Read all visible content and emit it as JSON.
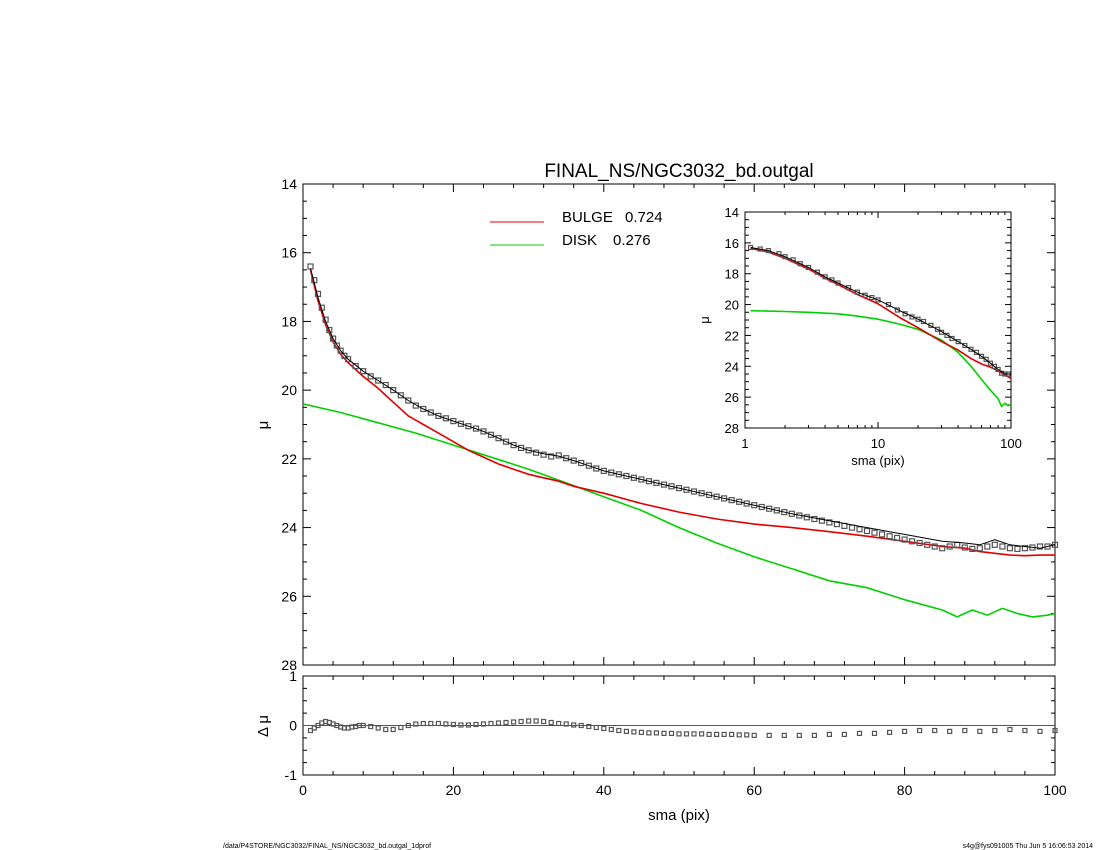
{
  "chart_data": [
    {
      "id": "main",
      "type": "line",
      "title": "FINAL_NS/NGC3032_bd.outgal",
      "xlabel": "sma (pix)",
      "ylabel": "μ",
      "xlim": [
        0,
        100
      ],
      "ylim": [
        28,
        14
      ],
      "x_ticks": [
        "0",
        "20",
        "40",
        "60",
        "80",
        "100"
      ],
      "y_ticks": [
        "14",
        "16",
        "18",
        "20",
        "22",
        "24",
        "26",
        "28"
      ],
      "legend": [
        {
          "label": "BULGE",
          "value": "0.724",
          "color": "#e00000"
        },
        {
          "label": "DISK",
          "value": "0.276",
          "color": "#00d000"
        }
      ],
      "series": [
        {
          "key": "data",
          "style": "squares",
          "color": "#555555",
          "x": [
            1,
            1.5,
            2,
            2.5,
            3,
            3.5,
            4,
            4.5,
            5,
            5.5,
            6,
            7,
            8,
            9,
            10,
            11,
            12,
            13,
            14,
            15,
            16,
            17,
            18,
            19,
            20,
            21,
            22,
            23,
            24,
            25,
            26,
            27,
            28,
            29,
            30,
            31,
            32,
            33,
            34,
            35,
            36,
            37,
            38,
            39,
            40,
            41,
            42,
            43,
            44,
            45,
            46,
            47,
            48,
            49,
            50,
            51,
            52,
            53,
            54,
            55,
            56,
            57,
            58,
            59,
            60,
            61,
            62,
            63,
            64,
            65,
            66,
            67,
            68,
            69,
            70,
            71,
            72,
            73,
            74,
            75,
            76,
            77,
            78,
            79,
            80,
            81,
            82,
            83,
            84,
            85,
            86,
            87,
            88,
            89,
            90,
            91,
            92,
            93,
            94,
            95,
            96,
            97,
            98,
            99,
            100
          ],
          "y": [
            16.4,
            16.8,
            17.2,
            17.6,
            17.95,
            18.25,
            18.5,
            18.7,
            18.85,
            19.0,
            19.1,
            19.3,
            19.45,
            19.6,
            19.72,
            19.85,
            20.0,
            20.15,
            20.3,
            20.45,
            20.55,
            20.65,
            20.75,
            20.82,
            20.9,
            20.98,
            21.05,
            21.12,
            21.2,
            21.3,
            21.4,
            21.5,
            21.6,
            21.68,
            21.75,
            21.82,
            21.88,
            21.93,
            21.9,
            21.98,
            22.05,
            22.12,
            22.2,
            22.28,
            22.35,
            22.4,
            22.45,
            22.5,
            22.55,
            22.6,
            22.65,
            22.7,
            22.75,
            22.8,
            22.85,
            22.9,
            22.95,
            23.0,
            23.05,
            23.1,
            23.15,
            23.2,
            23.25,
            23.3,
            23.35,
            23.4,
            23.45,
            23.5,
            23.55,
            23.6,
            23.65,
            23.7,
            23.75,
            23.8,
            23.85,
            23.9,
            23.95,
            24.0,
            24.05,
            24.1,
            24.15,
            24.2,
            24.25,
            24.3,
            24.35,
            24.4,
            24.45,
            24.5,
            24.55,
            24.6,
            24.55,
            24.5,
            24.58,
            24.62,
            24.6,
            24.55,
            24.5,
            24.55,
            24.6,
            24.62,
            24.6,
            24.58,
            24.55,
            24.55,
            24.5
          ]
        },
        {
          "key": "model",
          "style": "line",
          "color": "#000000",
          "x": [
            1,
            2,
            3,
            4,
            5,
            6,
            8,
            10,
            12,
            14,
            16,
            18,
            20,
            22,
            24,
            26,
            28,
            30,
            32,
            34,
            36,
            38,
            40,
            45,
            50,
            55,
            60,
            65,
            70,
            75,
            80,
            85,
            88,
            90,
            92,
            94,
            96,
            98,
            100
          ],
          "y": [
            16.45,
            17.3,
            18.0,
            18.5,
            18.85,
            19.1,
            19.45,
            19.72,
            20.0,
            20.3,
            20.55,
            20.75,
            20.9,
            21.05,
            21.2,
            21.4,
            21.6,
            21.75,
            21.85,
            21.92,
            22.05,
            22.2,
            22.35,
            22.6,
            22.85,
            23.1,
            23.35,
            23.6,
            23.8,
            24.0,
            24.2,
            24.4,
            24.45,
            24.5,
            24.35,
            24.5,
            24.55,
            24.6,
            24.5
          ]
        },
        {
          "key": "bulge",
          "style": "line",
          "color": "#e00000",
          "x": [
            1,
            2,
            3,
            4,
            5,
            6,
            7,
            8,
            10,
            12,
            14,
            16,
            18,
            20,
            22,
            24,
            26,
            28,
            30,
            32,
            34,
            36,
            38,
            40,
            45,
            50,
            55,
            60,
            65,
            70,
            75,
            80,
            85,
            88,
            90,
            92,
            94,
            96,
            98,
            100
          ],
          "y": [
            16.5,
            17.4,
            18.1,
            18.6,
            18.95,
            19.2,
            19.4,
            19.6,
            19.95,
            20.35,
            20.75,
            21.0,
            21.25,
            21.5,
            21.75,
            21.95,
            22.15,
            22.3,
            22.45,
            22.55,
            22.65,
            22.8,
            22.9,
            23.0,
            23.3,
            23.55,
            23.75,
            23.9,
            24.0,
            24.12,
            24.25,
            24.4,
            24.55,
            24.6,
            24.7,
            24.75,
            24.8,
            24.82,
            24.8,
            24.8
          ]
        },
        {
          "key": "disk",
          "style": "line",
          "color": "#00d000",
          "x": [
            0,
            5,
            10,
            15,
            20,
            25,
            30,
            35,
            40,
            45,
            50,
            55,
            60,
            65,
            70,
            75,
            80,
            85,
            87,
            89,
            91,
            93,
            95,
            97,
            99,
            100
          ],
          "y": [
            20.4,
            20.65,
            20.95,
            21.25,
            21.6,
            21.95,
            22.3,
            22.7,
            23.1,
            23.5,
            24.0,
            24.45,
            24.85,
            25.2,
            25.55,
            25.75,
            26.1,
            26.4,
            26.6,
            26.4,
            26.55,
            26.35,
            26.5,
            26.6,
            26.55,
            26.5
          ]
        }
      ]
    },
    {
      "id": "inset",
      "type": "line",
      "xlabel": "sma (pix)",
      "ylabel": "μ",
      "xscale": "log",
      "xlim": [
        1,
        100
      ],
      "ylim": [
        28,
        14
      ],
      "x_ticks": [
        "1",
        "10",
        "100"
      ],
      "y_ticks": [
        "14",
        "16",
        "18",
        "20",
        "22",
        "24",
        "26",
        "28"
      ],
      "series": [
        {
          "key": "data",
          "style": "squares",
          "color": "#555555",
          "x": [
            1.1,
            1.3,
            1.5,
            1.8,
            2,
            2.3,
            2.6,
            3,
            3.5,
            4,
            4.5,
            5,
            6,
            7,
            8,
            9,
            10,
            12,
            14,
            16,
            18,
            20,
            22,
            25,
            28,
            30,
            33,
            36,
            40,
            45,
            50,
            55,
            60,
            65,
            70,
            75,
            80,
            85,
            90,
            95
          ],
          "y": [
            16.3,
            16.4,
            16.5,
            16.7,
            16.9,
            17.1,
            17.35,
            17.6,
            17.9,
            18.2,
            18.4,
            18.6,
            18.9,
            19.2,
            19.4,
            19.55,
            19.7,
            20.0,
            20.35,
            20.6,
            20.8,
            20.95,
            21.1,
            21.35,
            21.6,
            21.8,
            22.0,
            22.2,
            22.4,
            22.65,
            22.9,
            23.1,
            23.35,
            23.55,
            23.8,
            24.0,
            24.2,
            24.45,
            24.5,
            24.5
          ]
        },
        {
          "key": "model",
          "style": "line",
          "color": "#000000",
          "x": [
            1.1,
            1.5,
            2,
            3,
            4,
            5,
            7,
            10,
            15,
            20,
            30,
            40,
            50,
            60,
            70,
            80,
            90,
            100
          ],
          "y": [
            16.3,
            16.5,
            16.9,
            17.6,
            18.2,
            18.6,
            19.2,
            19.7,
            20.45,
            20.95,
            21.75,
            22.4,
            22.9,
            23.35,
            23.8,
            24.2,
            24.5,
            24.5
          ]
        },
        {
          "key": "bulge",
          "style": "line",
          "color": "#e00000",
          "x": [
            1.1,
            1.5,
            2,
            3,
            4,
            5,
            7,
            10,
            15,
            20,
            30,
            40,
            50,
            60,
            70,
            80,
            90,
            100
          ],
          "y": [
            16.35,
            16.6,
            17.0,
            17.7,
            18.3,
            18.7,
            19.35,
            19.95,
            20.9,
            21.5,
            22.4,
            22.95,
            23.5,
            23.85,
            24.05,
            24.3,
            24.55,
            24.8
          ]
        },
        {
          "key": "disk",
          "style": "line",
          "color": "#00d000",
          "x": [
            1.1,
            2,
            3,
            5,
            7,
            10,
            15,
            20,
            30,
            40,
            50,
            60,
            70,
            80,
            85,
            90,
            95,
            100
          ],
          "y": [
            20.4,
            20.45,
            20.5,
            20.6,
            20.75,
            20.95,
            21.3,
            21.6,
            22.3,
            23.1,
            24.0,
            24.85,
            25.55,
            26.1,
            26.6,
            26.4,
            26.55,
            26.5
          ]
        }
      ]
    },
    {
      "id": "residual",
      "type": "line",
      "xlabel": "sma (pix)",
      "ylabel": "Δ μ",
      "xlim": [
        0,
        100
      ],
      "ylim": [
        -1,
        1
      ],
      "x_ticks": [
        "0",
        "20",
        "40",
        "60",
        "80",
        "100"
      ],
      "y_ticks": [
        "1",
        "0",
        "-1"
      ],
      "series": [
        {
          "key": "residual",
          "style": "squares",
          "color": "#555555",
          "x": [
            1,
            1.5,
            2,
            2.5,
            3,
            3.5,
            4,
            4.5,
            5,
            5.5,
            6,
            6.5,
            7,
            7.5,
            8,
            9,
            10,
            11,
            12,
            13,
            14,
            15,
            16,
            17,
            18,
            19,
            20,
            21,
            22,
            23,
            24,
            25,
            26,
            27,
            28,
            29,
            30,
            31,
            32,
            33,
            34,
            35,
            36,
            37,
            38,
            39,
            40,
            41,
            42,
            43,
            44,
            45,
            46,
            47,
            48,
            49,
            50,
            51,
            52,
            53,
            54,
            55,
            56,
            57,
            58,
            59,
            60,
            62,
            64,
            66,
            68,
            70,
            72,
            74,
            76,
            78,
            80,
            82,
            84,
            86,
            88,
            90,
            92,
            94,
            96,
            98,
            100
          ],
          "y": [
            -0.1,
            -0.05,
            0.0,
            0.05,
            0.08,
            0.06,
            0.03,
            0.0,
            -0.03,
            -0.05,
            -0.05,
            -0.03,
            -0.02,
            0.0,
            0.0,
            -0.02,
            -0.05,
            -0.08,
            -0.08,
            -0.04,
            0.0,
            0.03,
            0.04,
            0.04,
            0.04,
            0.03,
            0.02,
            0.01,
            0.01,
            0.02,
            0.03,
            0.04,
            0.05,
            0.06,
            0.07,
            0.08,
            0.09,
            0.09,
            0.08,
            0.06,
            0.04,
            0.03,
            0.01,
            0.0,
            -0.02,
            -0.04,
            -0.06,
            -0.08,
            -0.1,
            -0.12,
            -0.13,
            -0.14,
            -0.15,
            -0.15,
            -0.16,
            -0.16,
            -0.17,
            -0.17,
            -0.17,
            -0.17,
            -0.18,
            -0.18,
            -0.18,
            -0.18,
            -0.19,
            -0.19,
            -0.2,
            -0.2,
            -0.2,
            -0.2,
            -0.2,
            -0.18,
            -0.18,
            -0.16,
            -0.16,
            -0.14,
            -0.12,
            -0.1,
            -0.1,
            -0.12,
            -0.1,
            -0.12,
            -0.1,
            -0.08,
            -0.1,
            -0.12,
            -0.1
          ]
        },
        {
          "key": "zero",
          "style": "line",
          "color": "#555555",
          "x": [
            0,
            100
          ],
          "y": [
            0,
            0
          ]
        }
      ]
    }
  ],
  "footer": {
    "left": "/data/P4STORE/NGC3032/FINAL_NS/NGC3032_bd.outgal_1dprof",
    "right": "s4g@fys091005  Thu Jun  5 16:06:53 2014"
  }
}
